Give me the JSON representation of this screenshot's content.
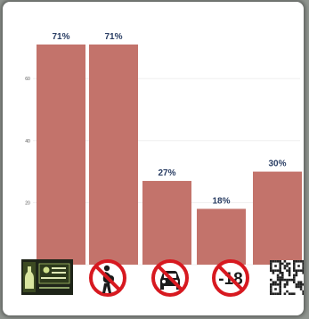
{
  "chart_data": {
    "type": "bar",
    "categories": [
      "drinking",
      "pregnancy",
      "driving",
      "under 18",
      "qr code"
    ],
    "values": [
      71,
      71,
      27,
      18,
      30
    ],
    "value_labels": [
      "71%",
      "71%",
      "27%",
      "18%",
      "30%"
    ],
    "title": "",
    "xlabel": "",
    "ylabel": "",
    "yticks": [
      0,
      20,
      40,
      60
    ],
    "ylim": [
      0,
      75
    ],
    "grid": true,
    "bar_color": "#c3736b"
  },
  "icons": [
    {
      "name": "alcohol-label-icon",
      "label": ""
    },
    {
      "name": "no-pregnant-woman-icon",
      "label": ""
    },
    {
      "name": "no-drink-driving-icon",
      "label": ""
    },
    {
      "name": "no-under-18-icon",
      "label": "-18"
    },
    {
      "name": "qr-code-icon",
      "label": ""
    }
  ]
}
